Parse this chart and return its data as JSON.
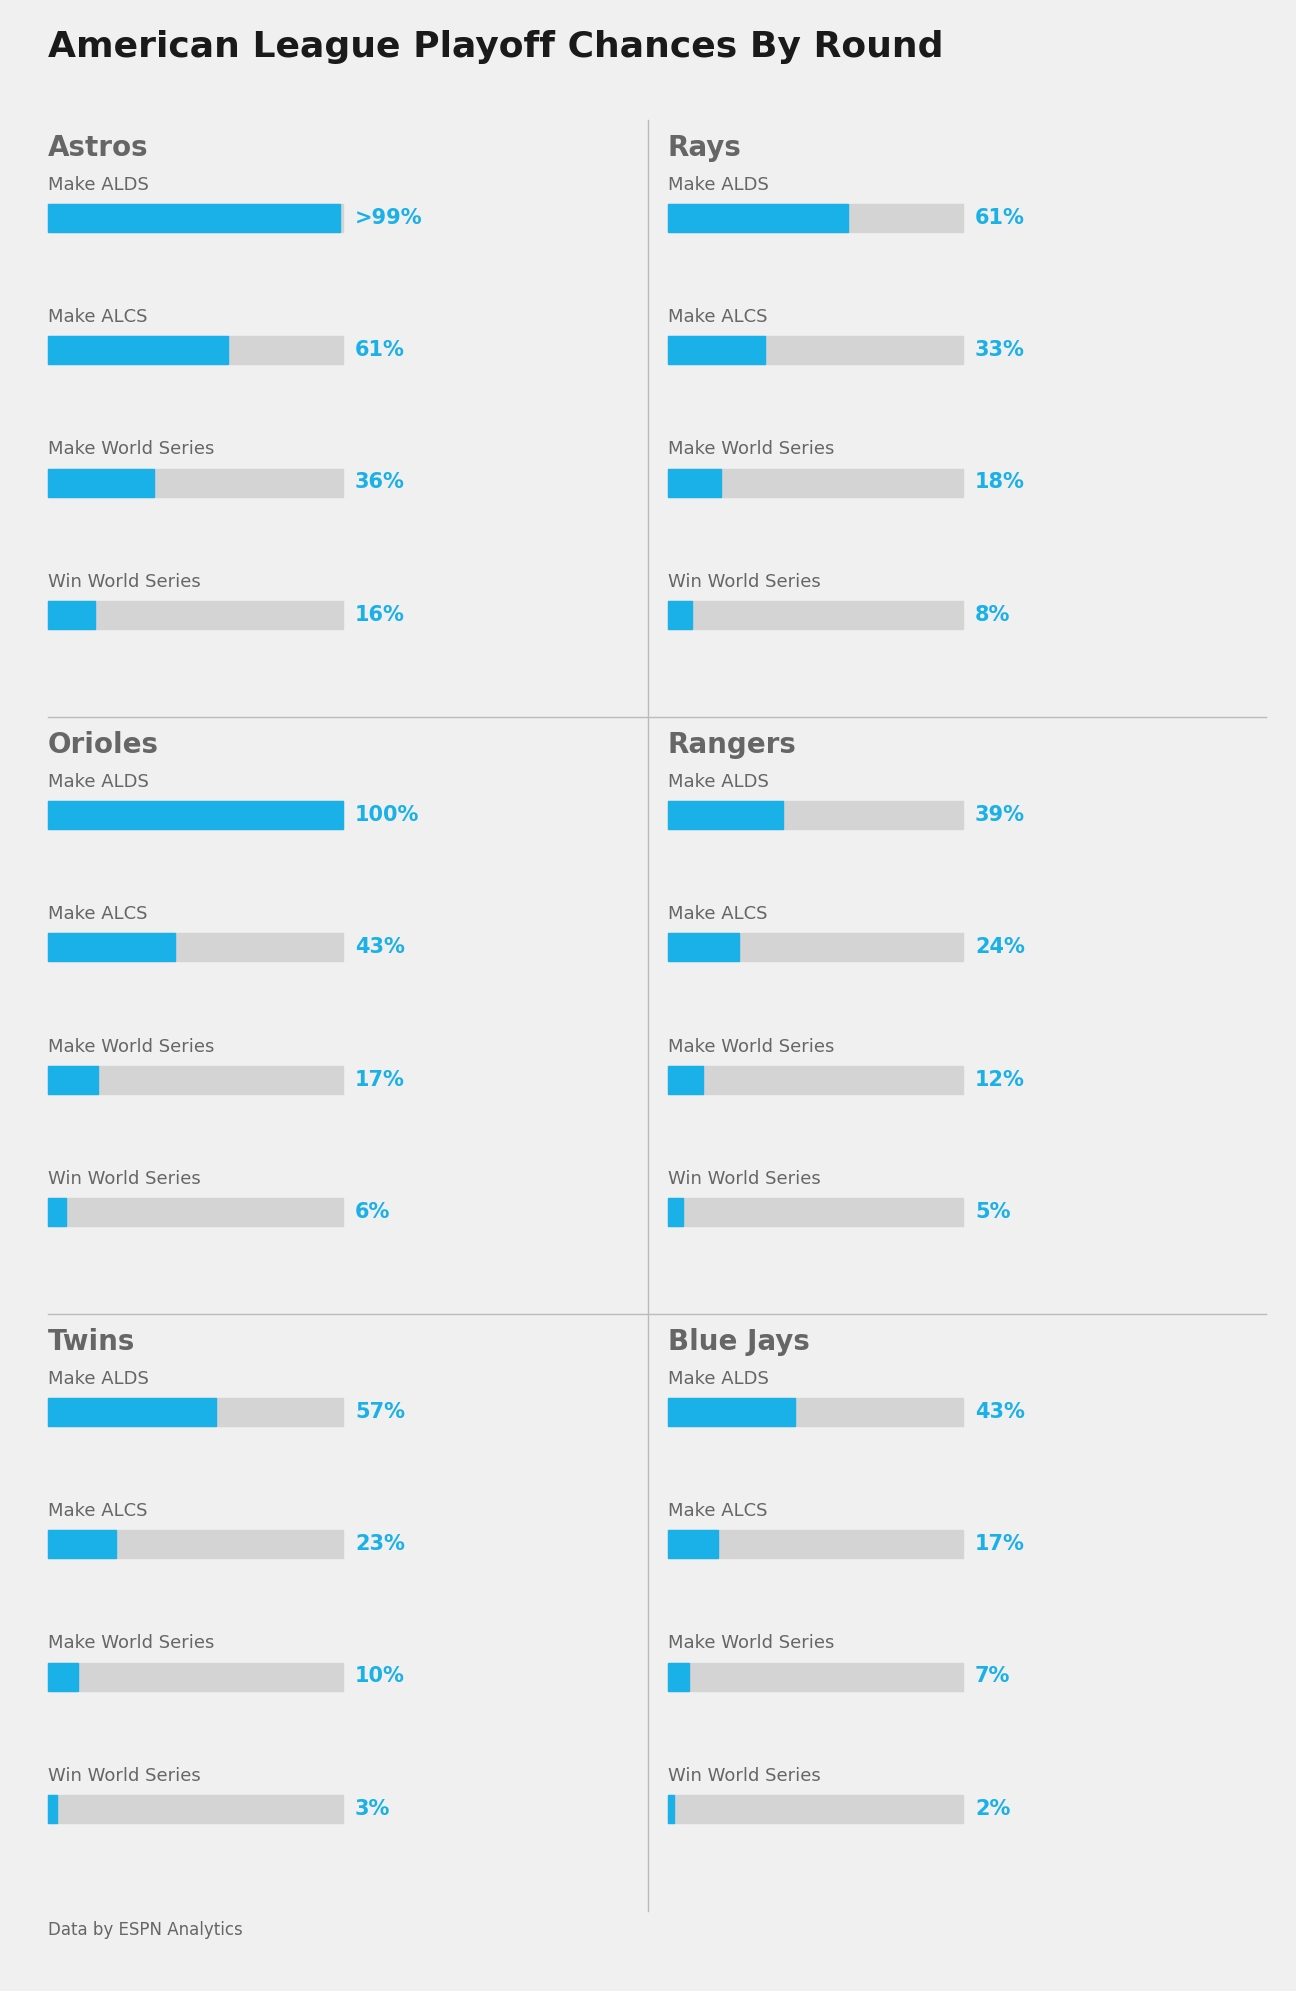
{
  "title": "American League Playoff Chances By Round",
  "background_color": "#f0f0f0",
  "bar_color": "#1ab0e8",
  "bar_bg_color": "#d4d4d4",
  "text_color": "#666666",
  "value_color": "#1ab0e8",
  "title_color": "#1a1a1a",
  "footer": "Data by ESPN Analytics",
  "teams": [
    {
      "name": "Astros",
      "col": 0,
      "row": 0,
      "rounds": [
        "Make ALDS",
        "Make ALCS",
        "Make World Series",
        "Win World Series"
      ],
      "values": [
        99,
        61,
        36,
        16
      ],
      "labels": [
        ">99%",
        "61%",
        "36%",
        "16%"
      ]
    },
    {
      "name": "Rays",
      "col": 1,
      "row": 0,
      "rounds": [
        "Make ALDS",
        "Make ALCS",
        "Make World Series",
        "Win World Series"
      ],
      "values": [
        61,
        33,
        18,
        8
      ],
      "labels": [
        "61%",
        "33%",
        "18%",
        "8%"
      ]
    },
    {
      "name": "Orioles",
      "col": 0,
      "row": 1,
      "rounds": [
        "Make ALDS",
        "Make ALCS",
        "Make World Series",
        "Win World Series"
      ],
      "values": [
        100,
        43,
        17,
        6
      ],
      "labels": [
        "100%",
        "43%",
        "17%",
        "6%"
      ]
    },
    {
      "name": "Rangers",
      "col": 1,
      "row": 1,
      "rounds": [
        "Make ALDS",
        "Make ALCS",
        "Make World Series",
        "Win World Series"
      ],
      "values": [
        39,
        24,
        12,
        5
      ],
      "labels": [
        "39%",
        "24%",
        "12%",
        "5%"
      ]
    },
    {
      "name": "Twins",
      "col": 0,
      "row": 2,
      "rounds": [
        "Make ALDS",
        "Make ALCS",
        "Make World Series",
        "Win World Series"
      ],
      "values": [
        57,
        23,
        10,
        3
      ],
      "labels": [
        "57%",
        "23%",
        "10%",
        "3%"
      ]
    },
    {
      "name": "Blue Jays",
      "col": 1,
      "row": 2,
      "rounds": [
        "Make ALDS",
        "Make ALCS",
        "Make World Series",
        "Win World Series"
      ],
      "values": [
        43,
        17,
        7,
        2
      ],
      "labels": [
        "43%",
        "17%",
        "7%",
        "2%"
      ]
    }
  ]
}
